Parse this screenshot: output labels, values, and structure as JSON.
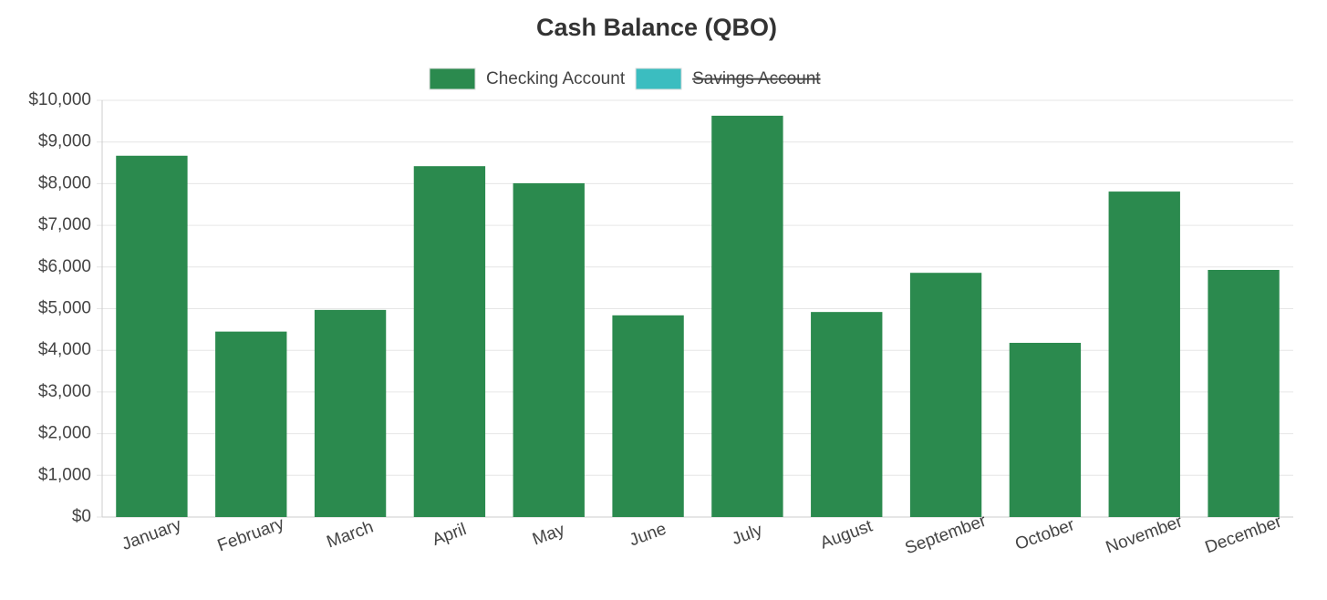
{
  "chart_data": {
    "type": "bar",
    "title": "Cash Balance (QBO)",
    "categories": [
      "January",
      "February",
      "March",
      "April",
      "May",
      "June",
      "July",
      "August",
      "September",
      "October",
      "November",
      "December"
    ],
    "series": [
      {
        "name": "Checking Account",
        "color": "#2b8a4e",
        "values": [
          8670,
          4450,
          4970,
          8420,
          8010,
          4840,
          9630,
          4920,
          5860,
          4180,
          7810,
          5930
        ]
      },
      {
        "name": "Savings Account",
        "color": "#3bbdc0",
        "hidden": true,
        "values": [
          null,
          null,
          null,
          null,
          null,
          null,
          null,
          null,
          null,
          null,
          null,
          null
        ]
      }
    ],
    "ylim": [
      0,
      10000
    ],
    "yticks": [
      {
        "value": 0,
        "label": "$0"
      },
      {
        "value": 1000,
        "label": "$1,000"
      },
      {
        "value": 2000,
        "label": "$2,000"
      },
      {
        "value": 3000,
        "label": "$3,000"
      },
      {
        "value": 4000,
        "label": "$4,000"
      },
      {
        "value": 5000,
        "label": "$5,000"
      },
      {
        "value": 6000,
        "label": "$6,000"
      },
      {
        "value": 7000,
        "label": "$7,000"
      },
      {
        "value": 8000,
        "label": "$8,000"
      },
      {
        "value": 9000,
        "label": "$9,000"
      },
      {
        "value": 10000,
        "label": "$10,000"
      }
    ],
    "grid": true,
    "legend": "top"
  }
}
